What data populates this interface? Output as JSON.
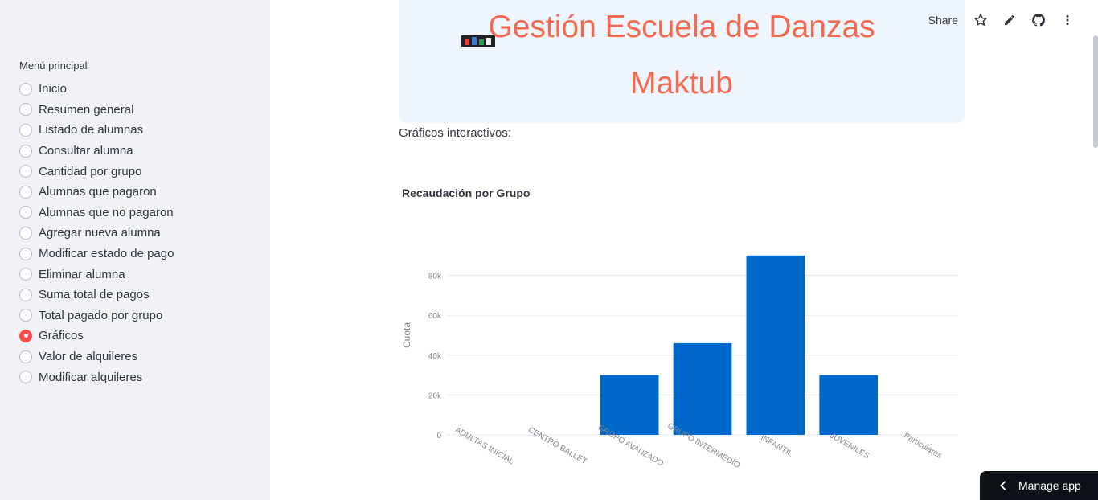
{
  "sidebar": {
    "menu_label": "Menú principal",
    "items": [
      {
        "label": "Inicio",
        "selected": false
      },
      {
        "label": "Resumen general",
        "selected": false
      },
      {
        "label": "Listado de alumnas",
        "selected": false
      },
      {
        "label": "Consultar alumna",
        "selected": false
      },
      {
        "label": "Cantidad por grupo",
        "selected": false
      },
      {
        "label": "Alumnas que pagaron",
        "selected": false
      },
      {
        "label": "Alumnas que no pagaron",
        "selected": false
      },
      {
        "label": "Agregar nueva alumna",
        "selected": false
      },
      {
        "label": "Modificar estado de pago",
        "selected": false
      },
      {
        "label": "Eliminar alumna",
        "selected": false
      },
      {
        "label": "Suma total de pagos",
        "selected": false
      },
      {
        "label": "Total pagado por grupo",
        "selected": false
      },
      {
        "label": "Gráficos",
        "selected": true
      },
      {
        "label": "Valor de alquileres",
        "selected": false
      },
      {
        "label": "Modificar alquileres",
        "selected": false
      }
    ]
  },
  "toolbar": {
    "share_label": "Share",
    "icons": [
      "star-icon",
      "pencil-icon",
      "github-icon",
      "more-icon"
    ]
  },
  "banner": {
    "title_line1": "Gestión Escuela de Danzas",
    "title_line2": "Maktub",
    "title_color": "#f26a52"
  },
  "main": {
    "intro_text": "Gráficos interactivos:"
  },
  "chart_data": {
    "type": "bar",
    "title": "Recaudación por Grupo",
    "xlabel": "",
    "ylabel": "Cuota",
    "categories": [
      "ADULTAS INICIAL",
      "CENTRO BALLET",
      "GRUPO AVANZADO",
      "GRUPO INTERMEDIO",
      "INFANTIL",
      "JUVENILES",
      "Particulares"
    ],
    "values": [
      0,
      0,
      30000,
      46000,
      90000,
      30000,
      0
    ],
    "yticks": [
      0,
      20000,
      40000,
      60000,
      80000
    ],
    "ytick_labels": [
      "0",
      "20k",
      "40k",
      "60k",
      "80k"
    ],
    "ylim": [
      0,
      100000
    ],
    "grid": true,
    "bar_color": "#0068c9"
  },
  "footer": {
    "manage_label": "Manage app"
  }
}
